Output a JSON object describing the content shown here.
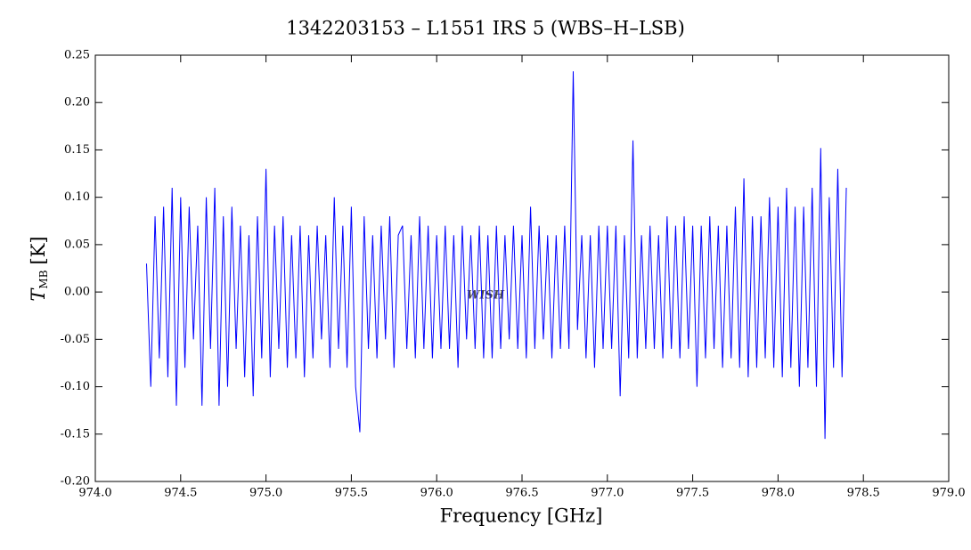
{
  "chart_data": {
    "type": "line",
    "title": "1342203153 – L1551 IRS 5 (WBS–H–LSB)",
    "xlabel": "Frequency [GHz]",
    "ylabel": "T",
    "ylabel_subscript": "MB",
    "ylabel_unit": "[K]",
    "watermark": "WISH",
    "x": [
      974.3,
      974.325,
      974.35,
      974.375,
      974.4,
      974.425,
      974.45,
      974.475,
      974.5,
      974.525,
      974.55,
      974.575,
      974.6,
      974.625,
      974.65,
      974.675,
      974.7,
      974.725,
      974.75,
      974.775,
      974.8,
      974.825,
      974.85,
      974.875,
      974.9,
      974.925,
      974.95,
      974.975,
      975.0,
      975.025,
      975.05,
      975.075,
      975.1,
      975.125,
      975.15,
      975.175,
      975.2,
      975.225,
      975.25,
      975.275,
      975.3,
      975.325,
      975.35,
      975.375,
      975.4,
      975.425,
      975.45,
      975.475,
      975.5,
      975.525,
      975.55,
      975.575,
      975.6,
      975.625,
      975.65,
      975.675,
      975.7,
      975.725,
      975.75,
      975.775,
      975.8,
      975.825,
      975.85,
      975.875,
      975.9,
      975.925,
      975.95,
      975.975,
      976.0,
      976.025,
      976.05,
      976.075,
      976.1,
      976.125,
      976.15,
      976.175,
      976.2,
      976.225,
      976.25,
      976.275,
      976.3,
      976.325,
      976.35,
      976.375,
      976.4,
      976.425,
      976.45,
      976.475,
      976.5,
      976.525,
      976.55,
      976.575,
      976.6,
      976.625,
      976.65,
      976.675,
      976.7,
      976.725,
      976.75,
      976.775,
      976.8,
      976.825,
      976.85,
      976.875,
      976.9,
      976.925,
      976.95,
      976.975,
      977.0,
      977.025,
      977.05,
      977.075,
      977.1,
      977.125,
      977.15,
      977.175,
      977.2,
      977.225,
      977.25,
      977.275,
      977.3,
      977.325,
      977.35,
      977.375,
      977.4,
      977.425,
      977.45,
      977.475,
      977.5,
      977.525,
      977.55,
      977.575,
      977.6,
      977.625,
      977.65,
      977.675,
      977.7,
      977.725,
      977.75,
      977.775,
      977.8,
      977.825,
      977.85,
      977.875,
      977.9,
      977.925,
      977.95,
      977.975,
      978.0,
      978.025,
      978.05,
      978.075,
      978.1,
      978.125,
      978.15,
      978.175,
      978.2,
      978.225,
      978.25,
      978.275,
      978.3,
      978.325,
      978.35,
      978.375,
      978.4
    ],
    "series": [
      {
        "color": "#0000ff",
        "values": [
          0.03,
          -0.1,
          0.08,
          -0.07,
          0.09,
          -0.09,
          0.11,
          -0.12,
          0.1,
          -0.08,
          0.09,
          -0.05,
          0.07,
          -0.12,
          0.1,
          -0.06,
          0.11,
          -0.12,
          0.08,
          -0.1,
          0.09,
          -0.06,
          0.07,
          -0.09,
          0.06,
          -0.11,
          0.08,
          -0.07,
          0.13,
          -0.09,
          0.07,
          -0.06,
          0.08,
          -0.08,
          0.06,
          -0.07,
          0.07,
          -0.09,
          0.06,
          -0.07,
          0.07,
          -0.05,
          0.06,
          -0.08,
          0.1,
          -0.06,
          0.07,
          -0.08,
          0.09,
          -0.1,
          -0.148,
          0.08,
          -0.06,
          0.06,
          -0.07,
          0.07,
          -0.05,
          0.08,
          -0.08,
          0.06,
          0.07,
          -0.06,
          0.06,
          -0.07,
          0.08,
          -0.06,
          0.07,
          -0.07,
          0.06,
          -0.06,
          0.07,
          -0.06,
          0.06,
          -0.08,
          0.07,
          -0.05,
          0.06,
          -0.06,
          0.07,
          -0.07,
          0.06,
          -0.07,
          0.07,
          -0.06,
          0.06,
          -0.05,
          0.07,
          -0.06,
          0.06,
          -0.07,
          0.09,
          -0.06,
          0.07,
          -0.05,
          0.06,
          -0.07,
          0.06,
          -0.06,
          0.07,
          -0.06,
          0.233,
          -0.04,
          0.06,
          -0.07,
          0.06,
          -0.08,
          0.07,
          -0.06,
          0.07,
          -0.06,
          0.07,
          -0.11,
          0.06,
          -0.07,
          0.16,
          -0.07,
          0.06,
          -0.06,
          0.07,
          -0.06,
          0.06,
          -0.07,
          0.08,
          -0.06,
          0.07,
          -0.07,
          0.08,
          -0.06,
          0.07,
          -0.1,
          0.07,
          -0.07,
          0.08,
          -0.06,
          0.07,
          -0.08,
          0.07,
          -0.07,
          0.09,
          -0.08,
          0.12,
          -0.09,
          0.08,
          -0.08,
          0.08,
          -0.07,
          0.1,
          -0.08,
          0.09,
          -0.09,
          0.11,
          -0.08,
          0.09,
          -0.1,
          0.09,
          -0.08,
          0.11,
          -0.1,
          0.152,
          -0.155,
          0.1,
          -0.08,
          0.13,
          -0.09,
          0.11
        ]
      }
    ],
    "xlim": [
      974.0,
      979.0
    ],
    "xticks": [
      {
        "value": 974.0,
        "label": "974.0"
      },
      {
        "value": 974.5,
        "label": "974.5"
      },
      {
        "value": 975.0,
        "label": "975.0"
      },
      {
        "value": 975.5,
        "label": "975.5"
      },
      {
        "value": 976.0,
        "label": "976.0"
      },
      {
        "value": 976.5,
        "label": "976.5"
      },
      {
        "value": 977.0,
        "label": "977.0"
      },
      {
        "value": 977.5,
        "label": "977.5"
      },
      {
        "value": 978.0,
        "label": "978.0"
      },
      {
        "value": 978.5,
        "label": "978.5"
      },
      {
        "value": 979.0,
        "label": "979.0"
      }
    ],
    "ylim": [
      -0.2,
      0.25
    ],
    "yticks": [
      {
        "value": -0.2,
        "label": "-0.20"
      },
      -0.15,
      {
        "value": -0.1,
        "label": "-0.10"
      },
      -0.05,
      {
        "value": 0,
        "label": "0.00"
      },
      0.05,
      {
        "value": 0.1,
        "label": "0.10"
      },
      0.15,
      {
        "value": 0.2,
        "label": "0.20"
      },
      0.25
    ],
    "grid": false
  }
}
